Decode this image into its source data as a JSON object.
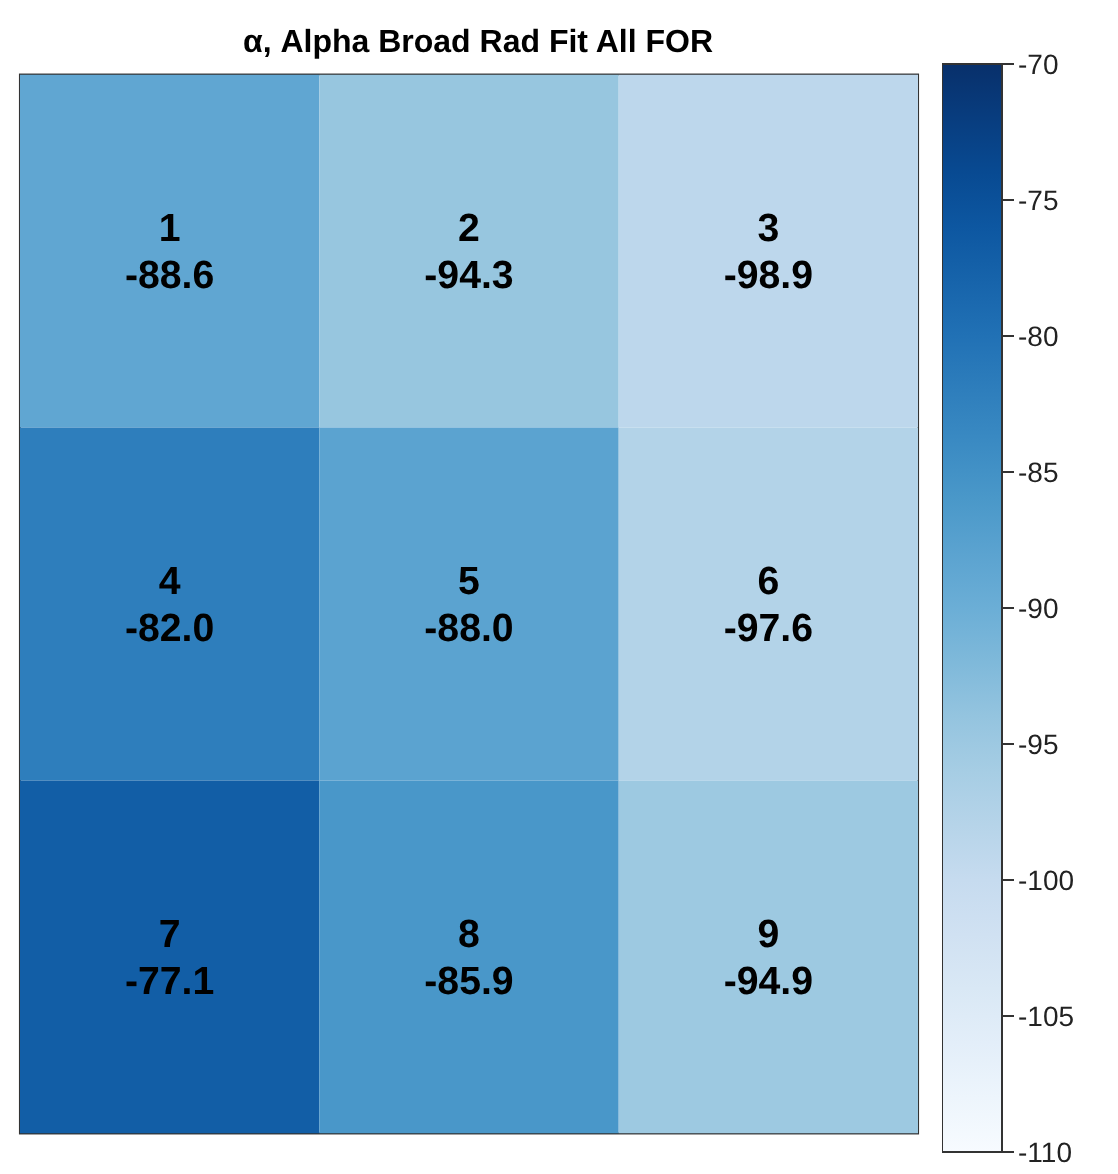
{
  "chart_data": {
    "type": "heatmap",
    "title": "α, Alpha Broad Rad Fit All FOR",
    "categories": [
      null,
      null,
      null
    ],
    "y_categories": [
      null,
      null,
      null
    ],
    "cells": [
      [
        -88.6,
        -94.3,
        -98.9
      ],
      [
        -82.0,
        -88.0,
        -97.6
      ],
      [
        -77.1,
        -85.9,
        -94.9
      ]
    ],
    "cell_labels": [
      [
        "1\n-88.6",
        "2\n-94.3",
        "3\n-98.9"
      ],
      [
        "4\n-82.0",
        "5\n-88.0",
        "6\n-97.6"
      ],
      [
        "7\n-77.1",
        "8\n-85.9",
        "9\n-94.9"
      ]
    ],
    "clim": [
      -110,
      -70
    ],
    "cticks": [
      -110,
      -105,
      -100,
      -95,
      -90,
      -85,
      -80,
      -75,
      -70
    ],
    "tick_labels": false
  }
}
